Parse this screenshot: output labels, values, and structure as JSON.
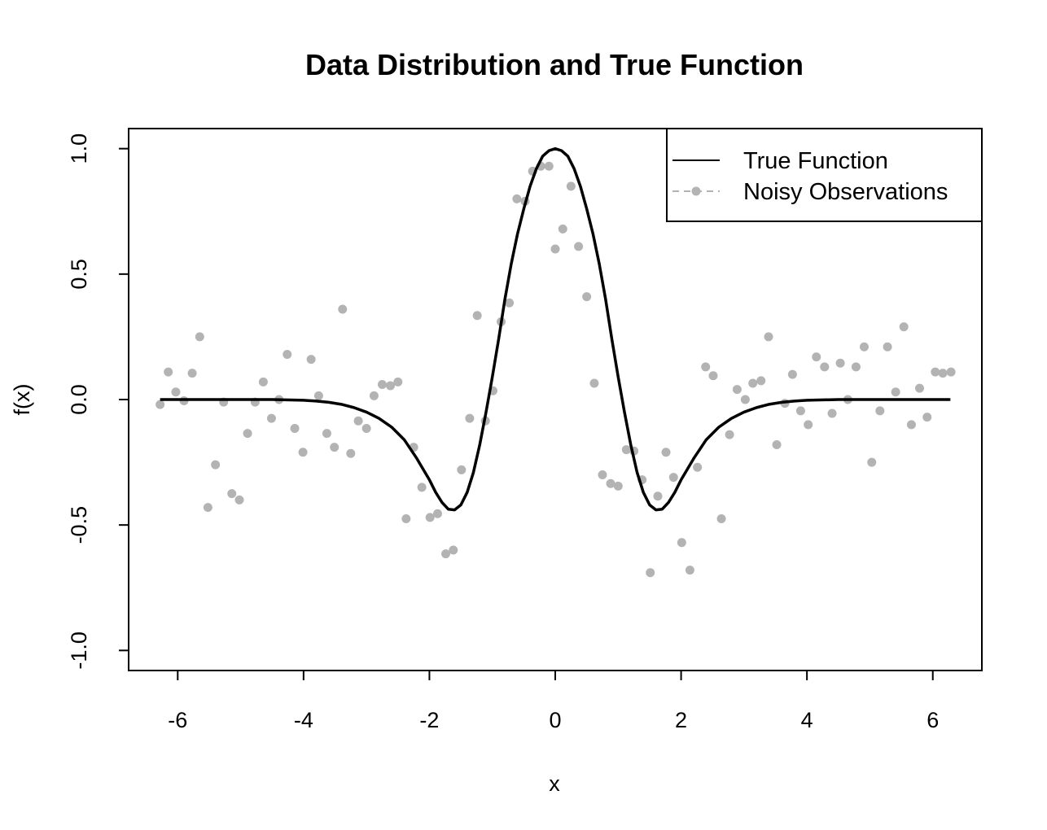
{
  "chart_data": {
    "type": "scatter",
    "title": "Data Distribution and True Function",
    "xlabel": "x",
    "ylabel": "f(x)",
    "xlim": [
      -6.78,
      6.78
    ],
    "ylim": [
      -1.08,
      1.08
    ],
    "x_ticks": [
      -6,
      -4,
      -2,
      0,
      2,
      4,
      6
    ],
    "x_tick_labels": [
      "-6",
      "-4",
      "-2",
      "0",
      "2",
      "4",
      "6"
    ],
    "y_ticks": [
      -1.0,
      -0.5,
      0.0,
      0.5,
      1.0
    ],
    "y_tick_labels": [
      "-1.0",
      "-0.5",
      "0.0",
      "0.5",
      "1.0"
    ],
    "grid": false,
    "legend_position": "top-right",
    "colors": {
      "true_function": "#000000",
      "observations": "#b3b3b3"
    },
    "series": [
      {
        "name": "True Function",
        "type": "line",
        "x": [
          -6.28,
          -6.0,
          -5.5,
          -5.0,
          -4.5,
          -4.0,
          -3.8,
          -3.6,
          -3.4,
          -3.2,
          -3.0,
          -2.8,
          -2.6,
          -2.4,
          -2.2,
          -2.0,
          -1.9,
          -1.8,
          -1.7,
          -1.6,
          -1.5,
          -1.4,
          -1.3,
          -1.2,
          -1.1,
          -1.0,
          -0.9,
          -0.8,
          -0.7,
          -0.6,
          -0.5,
          -0.4,
          -0.3,
          -0.2,
          -0.1,
          0.0,
          0.1,
          0.2,
          0.3,
          0.4,
          0.5,
          0.6,
          0.7,
          0.8,
          0.9,
          1.0,
          1.1,
          1.2,
          1.3,
          1.4,
          1.5,
          1.6,
          1.7,
          1.8,
          1.9,
          2.0,
          2.2,
          2.4,
          2.6,
          2.8,
          3.0,
          3.2,
          3.4,
          3.6,
          3.8,
          4.0,
          4.5,
          5.0,
          5.5,
          6.0,
          6.28
        ],
        "y": [
          0.0,
          0.0,
          0.0,
          0.0,
          0.0,
          -0.003,
          -0.006,
          -0.011,
          -0.019,
          -0.032,
          -0.05,
          -0.075,
          -0.11,
          -0.16,
          -0.235,
          -0.32,
          -0.37,
          -0.41,
          -0.437,
          -0.44,
          -0.42,
          -0.37,
          -0.29,
          -0.18,
          -0.05,
          0.09,
          0.24,
          0.4,
          0.54,
          0.66,
          0.76,
          0.85,
          0.92,
          0.97,
          0.992,
          1.0,
          0.992,
          0.97,
          0.92,
          0.85,
          0.76,
          0.66,
          0.54,
          0.4,
          0.24,
          0.09,
          -0.05,
          -0.18,
          -0.29,
          -0.37,
          -0.42,
          -0.44,
          -0.437,
          -0.41,
          -0.37,
          -0.32,
          -0.235,
          -0.16,
          -0.11,
          -0.075,
          -0.05,
          -0.032,
          -0.019,
          -0.011,
          -0.006,
          -0.003,
          0.0,
          0.0,
          0.0,
          0.0,
          0.0
        ]
      },
      {
        "name": "Noisy Observations",
        "type": "scatter",
        "x": [
          -6.28,
          -6.15,
          -6.03,
          -5.9,
          -5.77,
          -5.65,
          -5.52,
          -5.4,
          -5.27,
          -5.14,
          -5.02,
          -4.89,
          -4.77,
          -4.64,
          -4.51,
          -4.39,
          -4.26,
          -4.14,
          -4.01,
          -3.88,
          -3.76,
          -3.63,
          -3.51,
          -3.38,
          -3.25,
          -3.13,
          -3.0,
          -2.88,
          -2.75,
          -2.62,
          -2.5,
          -2.37,
          -2.25,
          -2.12,
          -1.99,
          -1.87,
          -1.74,
          -1.62,
          -1.49,
          -1.36,
          -1.24,
          -1.11,
          -0.99,
          -0.86,
          -0.73,
          -0.61,
          -0.48,
          -0.36,
          -0.23,
          -0.1,
          0.0,
          0.12,
          0.25,
          0.37,
          0.5,
          0.62,
          0.75,
          0.88,
          1.0,
          1.13,
          1.25,
          1.38,
          1.51,
          1.63,
          1.76,
          1.88,
          2.01,
          2.14,
          2.26,
          2.39,
          2.51,
          2.64,
          2.77,
          2.89,
          3.02,
          3.14,
          3.27,
          3.39,
          3.52,
          3.65,
          3.77,
          3.9,
          4.02,
          4.15,
          4.28,
          4.4,
          4.53,
          4.65,
          4.78,
          4.91,
          5.03,
          5.16,
          5.28,
          5.41,
          5.54,
          5.66,
          5.79,
          5.91,
          6.04,
          6.16,
          6.29
        ],
        "y": [
          -0.02,
          0.11,
          0.03,
          -0.005,
          0.105,
          0.25,
          -0.43,
          -0.26,
          -0.01,
          -0.375,
          -0.4,
          -0.135,
          -0.01,
          0.07,
          -0.075,
          0.0,
          0.18,
          -0.115,
          -0.21,
          0.16,
          0.015,
          -0.135,
          -0.19,
          0.36,
          -0.215,
          -0.085,
          -0.115,
          0.015,
          0.06,
          0.055,
          0.07,
          -0.475,
          -0.19,
          -0.35,
          -0.47,
          -0.455,
          -0.615,
          -0.6,
          -0.28,
          -0.075,
          0.335,
          -0.085,
          0.035,
          0.31,
          0.385,
          0.8,
          0.79,
          0.91,
          0.93,
          0.93,
          0.6,
          0.68,
          0.85,
          0.61,
          0.41,
          0.065,
          -0.3,
          -0.335,
          -0.345,
          -0.2,
          -0.205,
          -0.32,
          -0.69,
          -0.385,
          -0.21,
          -0.31,
          -0.57,
          -0.68,
          -0.27,
          0.13,
          0.095,
          -0.475,
          -0.14,
          0.04,
          0.0,
          0.065,
          0.075,
          0.25,
          -0.18,
          -0.015,
          0.1,
          -0.045,
          -0.1,
          0.17,
          0.13,
          -0.055,
          0.145,
          0.0,
          0.13,
          0.21,
          -0.25,
          -0.045,
          0.21,
          0.03,
          0.29,
          -0.1,
          0.045,
          -0.07,
          0.11,
          0.105,
          0.11
        ]
      }
    ]
  }
}
